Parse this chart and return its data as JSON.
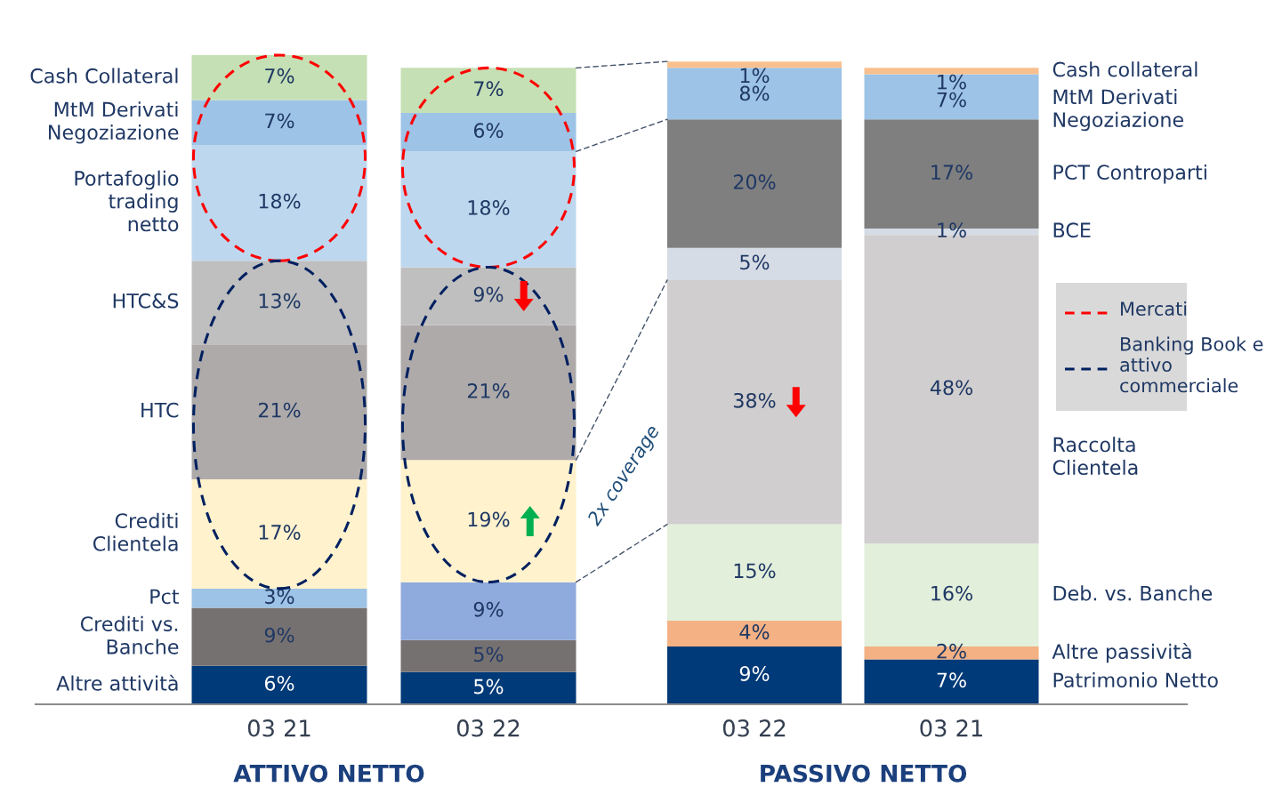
{
  "chart_data": [
    {
      "type": "bar",
      "stacked": true,
      "title": "ATTIVO NETTO",
      "categories": [
        "03 21",
        "03 22"
      ],
      "series": [
        {
          "name": "Altre attività",
          "color": "#003a78",
          "values": [
            6,
            5
          ],
          "value_labels": [
            "6%",
            "5%"
          ]
        },
        {
          "name": "Crediti vs.\nBanche",
          "color": "#767171",
          "values": [
            9,
            5
          ],
          "value_labels": [
            "9%",
            "5%"
          ]
        },
        {
          "name": "Pct",
          "colors": [
            "#9dc3e6",
            "#8faadc"
          ],
          "values": [
            3,
            9
          ],
          "value_labels": [
            "3%",
            "9%"
          ]
        },
        {
          "name": "Crediti\nClientela",
          "color": "#fff2cc",
          "values": [
            17,
            19
          ],
          "value_labels": [
            "17%",
            "19%"
          ]
        },
        {
          "name": "HTC",
          "color": "#aeaaaa",
          "values": [
            21,
            21
          ],
          "value_labels": [
            "21%",
            "21%"
          ]
        },
        {
          "name": "HTC&S",
          "color": "#bfbfbf",
          "values": [
            13,
            9
          ],
          "value_labels": [
            "13%",
            "9%"
          ]
        },
        {
          "name": "Portafoglio\ntrading\nnetto",
          "color": "#bdd7ee",
          "values": [
            18,
            18
          ],
          "value_labels": [
            "18%",
            "18%"
          ]
        },
        {
          "name": "MtM Derivati\nNegoziazione",
          "color": "#9dc3e6",
          "values": [
            7,
            6
          ],
          "value_labels": [
            "7%",
            "6%"
          ]
        },
        {
          "name": "Cash Collateral",
          "color": "#c5e0b4",
          "values": [
            7,
            7
          ],
          "value_labels": [
            "7%",
            "7%"
          ]
        }
      ]
    },
    {
      "type": "bar",
      "stacked": true,
      "title": "PASSIVO NETTO",
      "categories": [
        "03 22",
        "03 21"
      ],
      "series": [
        {
          "name": "Patrimonio Netto",
          "color": "#003a78",
          "values": [
            9,
            7
          ],
          "value_labels": [
            "9%",
            "7%"
          ]
        },
        {
          "name": "Altre passività",
          "color": "#f4b183",
          "values": [
            4,
            2
          ],
          "value_labels": [
            "4%",
            "2%"
          ]
        },
        {
          "name": "Deb. vs. Banche",
          "color": "#e2efda",
          "values": [
            15,
            16
          ],
          "value_labels": [
            "15%",
            "16%"
          ]
        },
        {
          "name": "Raccolta\nClientela",
          "color": "#d0cece",
          "values": [
            38,
            48
          ],
          "value_labels": [
            "38%",
            "48%"
          ]
        },
        {
          "name": "BCE",
          "color": "#d6dce5",
          "values": [
            5,
            1
          ],
          "value_labels": [
            "5%",
            "1%"
          ]
        },
        {
          "name": "PCT Controparti",
          "color": "#7f7f7f",
          "values": [
            20,
            17
          ],
          "value_labels": [
            "20%",
            "17%"
          ]
        },
        {
          "name": "MtM Derivati\nNegoziazione",
          "color": "#9dc3e6",
          "values": [
            8,
            7
          ],
          "value_labels": [
            "8%",
            "7%"
          ]
        },
        {
          "name": "Cash collateral",
          "color": "#f8c08e",
          "values": [
            1,
            1
          ],
          "value_labels": [
            "1%",
            "1%"
          ]
        }
      ],
      "annotations": [
        "Mercati",
        "Banking Book e\nattivo\ncommerciale",
        "2x coverage"
      ]
    }
  ]
}
